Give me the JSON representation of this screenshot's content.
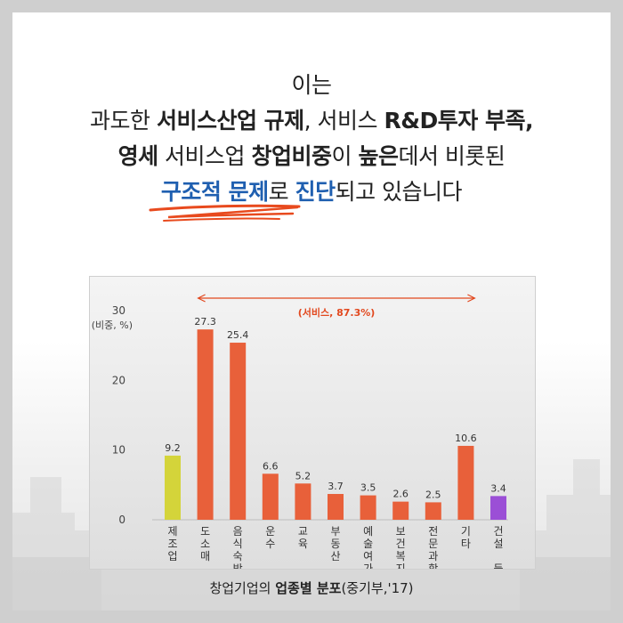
{
  "headline": {
    "line1": "이는",
    "line2_a": "과도한 ",
    "line2_b": "서비스산업 규제",
    "line2_c": ", 서비스 ",
    "line2_d": "R&D투자 부족",
    "line2_e": ",",
    "line3_a": "영세",
    "line3_b": " 서비스업 ",
    "line3_c": "창업비중",
    "line3_d": "이 ",
    "line3_e": "높은",
    "line3_f": "데서 비롯된",
    "line4_a": "구조적 문제",
    "line4_b": "로 ",
    "line4_c": "진단",
    "line4_d": "되고 있습니다"
  },
  "caption": {
    "a": "창업기업의 ",
    "b": "업종별 분포",
    "c": "(중기부,'17)"
  },
  "colors": {
    "bar_default": "#e8603a",
    "bar_manufacturing": "#d4d43a",
    "bar_construction": "#9b4fd6",
    "annotation": "#e2481e",
    "headline_blue": "#1f5fb0",
    "underline": "#e84a1e"
  },
  "chart_data": {
    "type": "bar",
    "ylabel": "(비중, %)",
    "ylim": [
      0,
      30
    ],
    "yticks": [
      0,
      10,
      20,
      30
    ],
    "grid": false,
    "categories": [
      "제조업",
      "도소매",
      "음식숙박",
      "운수",
      "교육",
      "부동산",
      "예술여가",
      "보건복지",
      "전문과학",
      "기타",
      "건설 등"
    ],
    "category_lines": [
      [
        "제",
        "조",
        "업"
      ],
      [
        "도",
        "소",
        "매"
      ],
      [
        "음",
        "식",
        "숙",
        "박"
      ],
      [
        "운",
        "수"
      ],
      [
        "교",
        "육"
      ],
      [
        "부",
        "동",
        "산"
      ],
      [
        "예",
        "술",
        "여",
        "가"
      ],
      [
        "보",
        "건",
        "복",
        "지"
      ],
      [
        "전",
        "문",
        "과",
        "학"
      ],
      [
        "기",
        "타"
      ],
      [
        "건",
        "설",
        "",
        "등"
      ]
    ],
    "values": [
      9.2,
      27.3,
      25.4,
      6.6,
      5.2,
      3.7,
      3.5,
      2.6,
      2.5,
      10.6,
      3.4
    ],
    "value_labels": [
      "9.2",
      "27.3",
      "25.4",
      "6.6",
      "5.2",
      "3.7",
      "3.5",
      "2.6",
      "2.5",
      "10.6",
      "3.4"
    ],
    "bar_colors": [
      "#d4d43a",
      "#e8603a",
      "#e8603a",
      "#e8603a",
      "#e8603a",
      "#e8603a",
      "#e8603a",
      "#e8603a",
      "#e8603a",
      "#e8603a",
      "#9b4fd6"
    ],
    "annotation": {
      "text": "(서비스, 87.3%)",
      "from_category": 1,
      "to_category": 9
    }
  }
}
